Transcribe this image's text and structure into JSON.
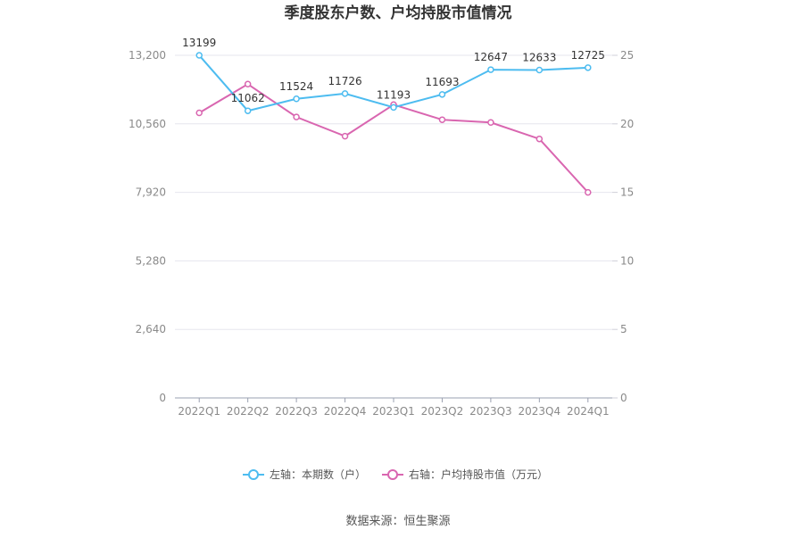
{
  "chart_data": {
    "type": "line",
    "title": "季度股东户数、户均持股市值情况",
    "categories": [
      "2022Q1",
      "2022Q2",
      "2022Q3",
      "2022Q4",
      "2023Q1",
      "2023Q2",
      "2023Q3",
      "2023Q4",
      "2024Q1"
    ],
    "left_axis": {
      "ylim": [
        0,
        13200
      ],
      "ticks": [
        "0",
        "2,640",
        "5,280",
        "7,920",
        "10,560",
        "13,200"
      ]
    },
    "right_axis": {
      "ylim": [
        0,
        25
      ],
      "ticks": [
        "0",
        "5",
        "10",
        "15",
        "20",
        "25"
      ]
    },
    "series": [
      {
        "name": "左轴：本期数（户）",
        "axis": "left",
        "color": "#4dbcf0",
        "values": [
          13199,
          11062,
          11524,
          11726,
          11193,
          11693,
          12647,
          12633,
          12725
        ],
        "labels": [
          "13199",
          "11062",
          "11524",
          "11726",
          "11193",
          "11693",
          "12647",
          "12633",
          "12725"
        ]
      },
      {
        "name": "右轴：户均持股市值（万元）",
        "axis": "right",
        "color": "#d966b0",
        "values": [
          20.8,
          22.9,
          20.5,
          19.1,
          21.4,
          20.3,
          20.1,
          18.9,
          15.0
        ]
      }
    ],
    "grid": true,
    "legend_position": "bottom",
    "source": "数据来源：恒生聚源"
  }
}
